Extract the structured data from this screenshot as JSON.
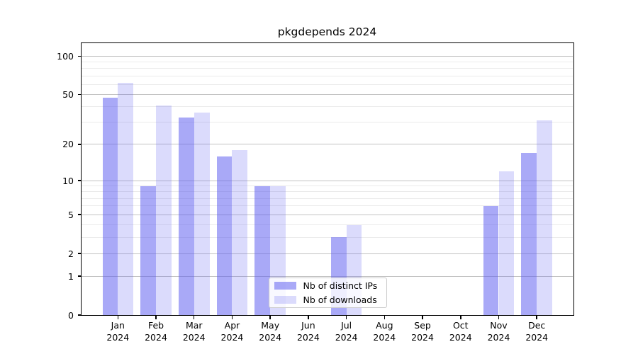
{
  "window": {
    "background": "#ffffff"
  },
  "chart_data": {
    "type": "bar",
    "title": "pkgdepends 2024",
    "categories": [
      "Jan",
      "Feb",
      "Mar",
      "Apr",
      "May",
      "Jun",
      "Jul",
      "Aug",
      "Sep",
      "Oct",
      "Nov",
      "Dec"
    ],
    "year_label": "2024",
    "x_tick_label_format": "{month}\n{year}",
    "series": [
      {
        "name": "Nb of distinct IPs",
        "base_color": "#5a5af0",
        "alpha": 0.52,
        "values": [
          47,
          9,
          33,
          16,
          9,
          0,
          3,
          0,
          0,
          0,
          6,
          17
        ]
      },
      {
        "name": "Nb of downloads",
        "base_color": "#5a5af0",
        "alpha": 0.22,
        "values": [
          62,
          41,
          36,
          18,
          9,
          0,
          4,
          0,
          0,
          0,
          12,
          31
        ]
      }
    ],
    "yscale": "log1p",
    "ylim": [
      0,
      125
    ],
    "y_major_ticks": [
      0,
      1,
      2,
      5,
      10,
      20,
      50,
      100
    ],
    "y_minor_ticks": [
      3,
      4,
      6,
      7,
      8,
      9,
      30,
      40,
      60,
      70,
      80,
      90
    ],
    "grid": {
      "show": true,
      "major_color": "#c2c2c2",
      "minor_color": "#ebebeb"
    },
    "axis_color": "#000000",
    "text_color": "#000000",
    "legend": {
      "location": "inside-bottom-center",
      "border_color": "#cccccc",
      "background": "rgba(255,255,255,0.8)"
    }
  }
}
